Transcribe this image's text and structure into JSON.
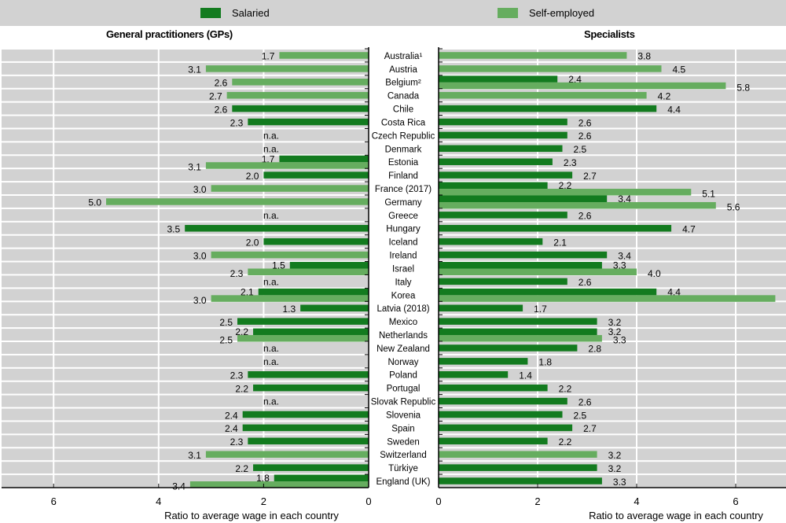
{
  "chart_data": {
    "type": "bar",
    "orientation": "horizontal",
    "legend": {
      "position": "top",
      "entries": [
        {
          "name": "Salaried",
          "color": "#137b1f"
        },
        {
          "name": "Self-employed",
          "color": "#66ad5f"
        }
      ]
    },
    "na_label": "n.a.",
    "categories": [
      "Australia¹",
      "Austria",
      "Belgium²",
      "Canada",
      "Chile",
      "Costa Rica",
      "Czech Republic",
      "Denmark",
      "Estonia",
      "Finland",
      "France (2017)",
      "Germany",
      "Greece",
      "Hungary",
      "Iceland",
      "Ireland",
      "Israel",
      "Italy",
      "Korea",
      "Latvia (2018)",
      "Mexico",
      "Netherlands",
      "New Zealand",
      "Norway",
      "Poland",
      "Portugal",
      "Slovak Republic",
      "Slovenia",
      "Spain",
      "Sweden",
      "Switzerland",
      "Türkiye",
      "England (UK)"
    ],
    "panels": [
      {
        "title": "General practitioners (GPs)",
        "xlabel": "Ratio to average wage in each country",
        "xlim": [
          0,
          7
        ],
        "direction": "reversed",
        "ticks": [
          0,
          2,
          4,
          6
        ],
        "grid": true,
        "series": [
          {
            "name": "Salaried",
            "values": [
              null,
              null,
              null,
              null,
              2.6,
              2.3,
              null,
              null,
              1.7,
              2.0,
              null,
              null,
              null,
              3.5,
              2.0,
              null,
              1.5,
              null,
              2.1,
              1.3,
              2.5,
              2.2,
              null,
              null,
              2.3,
              2.2,
              null,
              2.4,
              2.4,
              2.3,
              null,
              2.2,
              1.8
            ]
          },
          {
            "name": "Self-employed",
            "values": [
              1.7,
              3.1,
              2.6,
              2.7,
              null,
              null,
              null,
              null,
              3.1,
              null,
              3.0,
              5.0,
              null,
              null,
              null,
              3.0,
              2.3,
              null,
              3.0,
              null,
              null,
              2.5,
              null,
              null,
              null,
              null,
              null,
              null,
              null,
              null,
              3.1,
              null,
              3.4
            ]
          }
        ],
        "not_available": [
          "Czech Republic",
          "Denmark",
          "Greece",
          "Italy",
          "New Zealand",
          "Norway",
          "Slovak Republic"
        ]
      },
      {
        "title": "Specialists",
        "xlabel": "Ratio to average wage in each country",
        "xlim": [
          0,
          7
        ],
        "direction": "normal",
        "ticks": [
          0,
          2,
          4,
          6
        ],
        "grid": true,
        "series": [
          {
            "name": "Salaried",
            "values": [
              null,
              null,
              2.4,
              null,
              4.4,
              2.6,
              2.6,
              2.5,
              2.3,
              2.7,
              2.2,
              3.4,
              2.6,
              4.7,
              2.1,
              3.4,
              3.3,
              2.6,
              4.4,
              1.7,
              3.2,
              3.2,
              2.8,
              1.8,
              1.4,
              2.2,
              2.6,
              2.5,
              2.7,
              2.2,
              null,
              3.2,
              3.3
            ]
          },
          {
            "name": "Self-employed",
            "values": [
              3.8,
              4.5,
              5.8,
              4.2,
              null,
              null,
              null,
              null,
              null,
              null,
              5.1,
              5.6,
              null,
              null,
              null,
              null,
              4.0,
              null,
              6.8,
              null,
              null,
              3.3,
              null,
              null,
              null,
              null,
              null,
              null,
              null,
              null,
              3.2,
              null,
              null
            ]
          }
        ],
        "not_available": []
      }
    ]
  }
}
